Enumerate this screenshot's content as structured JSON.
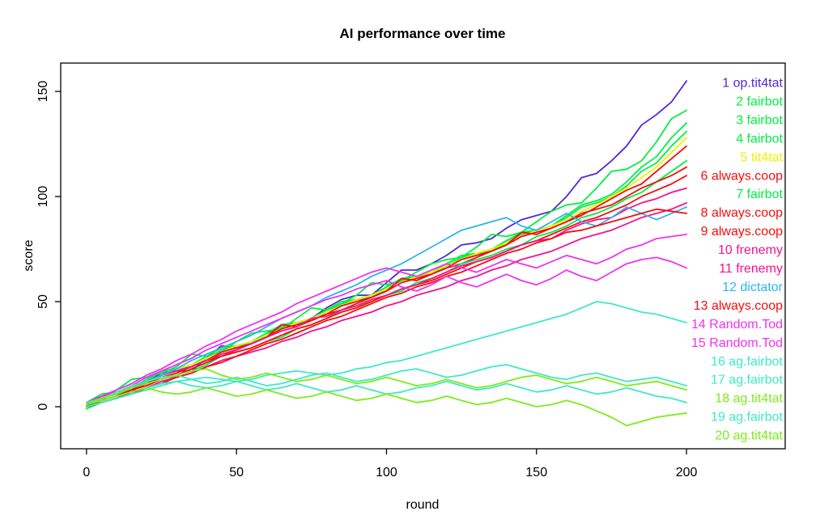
{
  "title": "AI performance over time",
  "axes": {
    "x_label": "round",
    "y_label": "score"
  },
  "colors": {
    "background": "#FFFFFF",
    "axis": "#000000"
  },
  "chart_data": {
    "type": "line",
    "title": "AI performance over time",
    "xlabel": "round",
    "ylabel": "score",
    "x_ticks": [
      0,
      50,
      100,
      150,
      200
    ],
    "y_ticks": [
      0,
      50,
      100,
      150
    ],
    "xlim": [
      -8.6,
      232.9
    ],
    "ylim": [
      -20,
      163.5
    ],
    "grid": false,
    "legend_position": "inside-right",
    "x_start": 0,
    "x_step": 5,
    "series": [
      {
        "rank": 1,
        "name": "op.tit4tat",
        "label": "1 op.tit4tat",
        "color": "#5128D8",
        "final_score": 155,
        "values": [
          0,
          5,
          6,
          7,
          12,
          16,
          17,
          17,
          23,
          29,
          28,
          30,
          34,
          39,
          40,
          42,
          47,
          51,
          53,
          53,
          59,
          65,
          65,
          68,
          72,
          77,
          78,
          80,
          85,
          89,
          91,
          93,
          100,
          109,
          111,
          117,
          124,
          134,
          139,
          145,
          155
        ]
      },
      {
        "rank": 2,
        "name": "fairbot",
        "label": "2 fairbot",
        "color": "#00EE44",
        "final_score": 141,
        "values": [
          2,
          3,
          8,
          13,
          14,
          16,
          19,
          25,
          24,
          26,
          31,
          35,
          36,
          37,
          42,
          47,
          46,
          49,
          53,
          59,
          58,
          60,
          64,
          68,
          70,
          71,
          76,
          82,
          81,
          83,
          88,
          93,
          96,
          97,
          104,
          112,
          113,
          117,
          126,
          137,
          141
        ]
      },
      {
        "rank": 3,
        "name": "fairbot",
        "label": "3 fairbot",
        "color": "#00EE44",
        "final_score": 135,
        "values": [
          1,
          5,
          6,
          8,
          12,
          17,
          18,
          19,
          23,
          27,
          29,
          30,
          34,
          38,
          40,
          41,
          45,
          49,
          51,
          52,
          56,
          60,
          62,
          63,
          67,
          71,
          73,
          74,
          78,
          82,
          84,
          86,
          91,
          96,
          98,
          101,
          107,
          114,
          119,
          128,
          135
        ]
      },
      {
        "rank": 4,
        "name": "fairbot",
        "label": "4 fairbot",
        "color": "#00EE44",
        "final_score": 131,
        "values": [
          2,
          6,
          7,
          9,
          13,
          17,
          18,
          20,
          24,
          28,
          29,
          31,
          35,
          39,
          40,
          42,
          46,
          50,
          51,
          53,
          57,
          61,
          62,
          64,
          68,
          72,
          73,
          75,
          79,
          83,
          84,
          86,
          90,
          95,
          97,
          100,
          105,
          112,
          116,
          124,
          131
        ]
      },
      {
        "rank": 5,
        "name": "tit4tat",
        "label": "5 tit4tat",
        "color": "#F0F000",
        "final_score": 128,
        "values": [
          1,
          4,
          7,
          9,
          12,
          15,
          18,
          20,
          23,
          26,
          29,
          31,
          34,
          37,
          40,
          42,
          45,
          48,
          51,
          53,
          56,
          59,
          62,
          64,
          67,
          70,
          73,
          75,
          78,
          81,
          84,
          86,
          89,
          93,
          96,
          100,
          104,
          109,
          114,
          121,
          128
        ]
      },
      {
        "rank": 6,
        "name": "always.coop",
        "label": "6 always.coop",
        "color": "#F50D0D",
        "final_score": 124,
        "values": [
          0,
          3,
          5,
          8,
          11,
          14,
          16,
          19,
          22,
          24,
          27,
          30,
          33,
          39,
          38,
          41,
          44,
          46,
          49,
          52,
          55,
          61,
          60,
          63,
          66,
          68,
          71,
          74,
          77,
          83,
          82,
          85,
          88,
          91,
          95,
          99,
          103,
          106,
          112,
          118,
          124
        ]
      },
      {
        "rank": 7,
        "name": "fairbot",
        "label": "7 fairbot",
        "color": "#00EE44",
        "final_score": 117,
        "values": [
          -1,
          2,
          4,
          7,
          9,
          11,
          15,
          17,
          20,
          24,
          26,
          28,
          31,
          33,
          37,
          39,
          42,
          46,
          48,
          50,
          53,
          55,
          59,
          61,
          64,
          68,
          70,
          72,
          75,
          77,
          81,
          83,
          86,
          90,
          92,
          95,
          99,
          102,
          107,
          112,
          117
        ]
      },
      {
        "rank": 8,
        "name": "always.coop",
        "label": "8 always.coop",
        "color": "#F50D0D",
        "final_score": 114,
        "values": [
          1,
          4,
          6,
          9,
          11,
          15,
          17,
          19,
          22,
          26,
          28,
          30,
          33,
          37,
          39,
          41,
          44,
          48,
          50,
          52,
          55,
          59,
          61,
          63,
          66,
          70,
          72,
          74,
          77,
          81,
          83,
          85,
          88,
          92,
          94,
          96,
          100,
          104,
          107,
          110,
          114
        ]
      },
      {
        "rank": 9,
        "name": "always.coop",
        "label": "9 always.coop",
        "color": "#F50D0D",
        "final_score": 110,
        "values": [
          0,
          3,
          5,
          8,
          10,
          13,
          15,
          18,
          21,
          24,
          26,
          28,
          31,
          34,
          37,
          39,
          42,
          45,
          47,
          50,
          53,
          56,
          58,
          60,
          63,
          66,
          69,
          71,
          74,
          77,
          79,
          82,
          85,
          88,
          90,
          93,
          96,
          100,
          103,
          106,
          110
        ]
      },
      {
        "rank": 10,
        "name": "frenemy",
        "label": "10 frenemy",
        "color": "#F5128F",
        "final_score": 104,
        "values": [
          2,
          5,
          7,
          10,
          12,
          15,
          17,
          19,
          22,
          25,
          27,
          30,
          33,
          36,
          38,
          42,
          43,
          46,
          48,
          51,
          53,
          56,
          58,
          61,
          64,
          67,
          69,
          71,
          74,
          77,
          79,
          80,
          84,
          87,
          89,
          90,
          94,
          97,
          99,
          102,
          104
        ]
      },
      {
        "rank": 11,
        "name": "frenemy",
        "label": "11 frenemy",
        "color": "#F5128F",
        "final_score": 97,
        "values": [
          0,
          2,
          4,
          7,
          9,
          12,
          14,
          16,
          19,
          22,
          24,
          26,
          28,
          31,
          33,
          36,
          38,
          41,
          43,
          45,
          48,
          50,
          53,
          55,
          57,
          60,
          62,
          65,
          67,
          70,
          72,
          74,
          77,
          80,
          82,
          84,
          87,
          90,
          92,
          94,
          97
        ]
      },
      {
        "rank": 12,
        "name": "dictator",
        "label": "12 dictator",
        "color": "#2FB3F0",
        "final_score": 95,
        "values": [
          1,
          4,
          6,
          9,
          12,
          15,
          18,
          22,
          25,
          28,
          31,
          34,
          38,
          42,
          45,
          48,
          52,
          55,
          58,
          62,
          65,
          68,
          72,
          76,
          80,
          84,
          86,
          88,
          90,
          86,
          84,
          88,
          92,
          88,
          86,
          90,
          95,
          92,
          89,
          92,
          95
        ]
      },
      {
        "rank": 13,
        "name": "always.coop",
        "label": "13 always.coop",
        "color": "#F50D0D",
        "final_score": 92,
        "values": [
          0,
          2,
          4,
          6,
          9,
          11,
          14,
          16,
          19,
          21,
          24,
          27,
          30,
          32,
          35,
          38,
          41,
          43,
          46,
          49,
          52,
          54,
          57,
          59,
          62,
          64,
          67,
          70,
          73,
          75,
          78,
          80,
          83,
          84,
          86,
          88,
          90,
          92,
          94,
          93,
          92
        ]
      },
      {
        "rank": 14,
        "name": "Random.Tod",
        "label": "14 Random.Tod",
        "color": "#EE33EE",
        "final_score": 82,
        "values": [
          2,
          5,
          8,
          11,
          15,
          18,
          22,
          25,
          29,
          32,
          36,
          39,
          42,
          45,
          49,
          52,
          55,
          58,
          61,
          64,
          66,
          64,
          62,
          65,
          68,
          66,
          64,
          67,
          70,
          68,
          66,
          69,
          72,
          70,
          68,
          71,
          75,
          77,
          80,
          81,
          82
        ]
      },
      {
        "rank": 15,
        "name": "Random.Tod",
        "label": "15 Random.Tod",
        "color": "#EE33EE",
        "final_score": 66,
        "values": [
          1,
          4,
          7,
          10,
          14,
          17,
          20,
          23,
          27,
          30,
          33,
          36,
          39,
          42,
          45,
          48,
          51,
          53,
          56,
          58,
          60,
          57,
          55,
          58,
          62,
          59,
          57,
          60,
          63,
          60,
          58,
          61,
          65,
          62,
          60,
          64,
          68,
          70,
          71,
          69,
          66
        ]
      },
      {
        "rank": 16,
        "name": "ag.fairbot",
        "label": "16 ag.fairbot",
        "color": "#3FE9C4",
        "final_score": 40,
        "values": [
          1,
          3,
          5,
          7,
          9,
          11,
          12,
          13,
          14,
          13,
          12,
          13,
          15,
          16,
          17,
          16,
          15,
          16,
          18,
          19,
          21,
          22,
          24,
          26,
          28,
          30,
          32,
          34,
          36,
          38,
          40,
          42,
          44,
          47,
          50,
          49,
          47,
          45,
          44,
          42,
          40
        ]
      },
      {
        "rank": 17,
        "name": "ag.fairbot",
        "label": "17 ag.fairbot",
        "color": "#3FE9C4",
        "final_score": 10,
        "values": [
          2,
          4,
          7,
          10,
          12,
          14,
          15,
          13,
          11,
          12,
          14,
          12,
          10,
          11,
          13,
          15,
          16,
          14,
          12,
          13,
          15,
          17,
          18,
          16,
          14,
          15,
          17,
          19,
          20,
          18,
          16,
          14,
          13,
          15,
          16,
          14,
          12,
          13,
          14,
          12,
          10
        ]
      },
      {
        "rank": 18,
        "name": "ag.tit4tat",
        "label": "18 ag.tit4tat",
        "color": "#7DEB1C",
        "final_score": 8,
        "values": [
          1,
          4,
          6,
          9,
          11,
          13,
          15,
          17,
          18,
          15,
          13,
          14,
          16,
          14,
          12,
          13,
          15,
          13,
          11,
          12,
          14,
          12,
          10,
          11,
          13,
          11,
          9,
          10,
          12,
          14,
          15,
          13,
          11,
          12,
          14,
          12,
          10,
          11,
          12,
          10,
          8
        ]
      },
      {
        "rank": 19,
        "name": "ag.fairbot",
        "label": "19 ag.fairbot",
        "color": "#3FE9C4",
        "final_score": 2,
        "values": [
          0,
          2,
          4,
          6,
          8,
          10,
          12,
          10,
          9,
          10,
          12,
          10,
          8,
          9,
          11,
          9,
          7,
          8,
          10,
          8,
          6,
          7,
          9,
          10,
          12,
          10,
          8,
          9,
          11,
          9,
          7,
          8,
          10,
          8,
          6,
          7,
          9,
          7,
          5,
          4,
          2
        ]
      },
      {
        "rank": 20,
        "name": "ag.tit4tat",
        "label": "20 ag.tit4tat",
        "color": "#7DEB1C",
        "final_score": -3,
        "values": [
          1,
          3,
          5,
          7,
          9,
          7,
          6,
          7,
          9,
          7,
          5,
          6,
          8,
          6,
          4,
          5,
          7,
          5,
          3,
          4,
          6,
          4,
          2,
          3,
          5,
          3,
          1,
          2,
          4,
          2,
          0,
          1,
          3,
          1,
          -2,
          -5,
          -9,
          -7,
          -5,
          -4,
          -3
        ]
      }
    ]
  }
}
